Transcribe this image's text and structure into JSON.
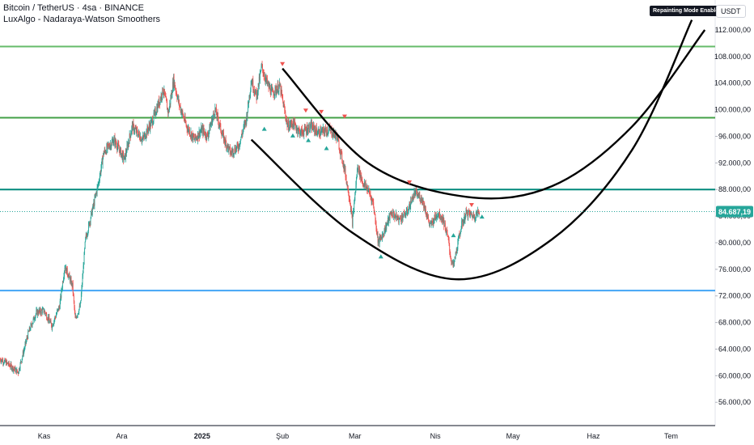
{
  "header": {
    "symbol_line": "Bitcoin / TetherUS · 4sa · BINANCE",
    "indicator_line": "LuxAlgo - Nadaraya-Watson Smoothers"
  },
  "badge": "Repainting Mode Enabled",
  "currency": "USDT",
  "colors": {
    "candle_up": "#26a69a",
    "candle_down": "#ef5350",
    "level_light_green": "#66bb6a",
    "level_green": "#43a047",
    "level_teal": "#00897b",
    "level_blue": "#42a5f5",
    "curve": "#000000",
    "price_label": "#26a69a"
  },
  "chart_data": {
    "type": "candlestick",
    "title": "Bitcoin / TetherUS · 4sa · BINANCE",
    "y_axis": {
      "ticks": [
        56000,
        60000,
        64000,
        68000,
        72000,
        76000,
        80000,
        84000,
        88000,
        92000,
        96000,
        100000,
        104000,
        108000,
        112000
      ],
      "tick_labels": [
        "56.000,00",
        "60.000,00",
        "64.000,00",
        "68.000,00",
        "72.000,00",
        "76.000,00",
        "80.000,00",
        "84.000,00",
        "88.000,00",
        "92.000,00",
        "96.000,00",
        "100.000,00",
        "104.000,00",
        "108.000,00",
        "112.000,00"
      ],
      "range": [
        52500,
        116500
      ]
    },
    "x_axis": {
      "tick_labels": [
        "Kas",
        "Ara",
        "2025",
        "Şub",
        "Mar",
        "Nis",
        "May",
        "Haz",
        "Tem"
      ],
      "tick_dates": [
        "2024-11-01",
        "2024-12-01",
        "2025-01-01",
        "2025-02-01",
        "2025-03-01",
        "2025-04-01",
        "2025-05-01",
        "2025-06-01",
        "2025-07-01"
      ],
      "range": [
        "2024-10-15",
        "2025-07-18"
      ]
    },
    "last_price": {
      "value": 84687.19,
      "label": "84.687,19"
    },
    "price_path": [
      [
        "2024-10-15",
        62500
      ],
      [
        "2024-10-18",
        61800
      ],
      [
        "2024-10-22",
        60500
      ],
      [
        "2024-10-26",
        66500
      ],
      [
        "2024-10-29",
        69500
      ],
      [
        "2024-11-01",
        69800
      ],
      [
        "2024-11-04",
        67500
      ],
      [
        "2024-11-07",
        70500
      ],
      [
        "2024-11-09",
        76500
      ],
      [
        "2024-11-12",
        73500
      ],
      [
        "2024-11-13",
        68500
      ],
      [
        "2024-11-15",
        70500
      ],
      [
        "2024-11-17",
        80500
      ],
      [
        "2024-11-20",
        85500
      ],
      [
        "2024-11-22",
        89000
      ],
      [
        "2024-11-24",
        93500
      ],
      [
        "2024-11-28",
        95500
      ],
      [
        "2024-12-02",
        92500
      ],
      [
        "2024-12-05",
        97500
      ],
      [
        "2024-12-09",
        95500
      ],
      [
        "2024-12-13",
        98500
      ],
      [
        "2024-12-17",
        103000
      ],
      [
        "2024-12-19",
        99500
      ],
      [
        "2024-12-21",
        104500
      ],
      [
        "2024-12-23",
        101000
      ],
      [
        "2024-12-26",
        97500
      ],
      [
        "2024-12-29",
        95500
      ],
      [
        "2025-01-01",
        97000
      ],
      [
        "2025-01-03",
        96000
      ],
      [
        "2025-01-06",
        100000
      ],
      [
        "2025-01-09",
        96000
      ],
      [
        "2025-01-12",
        93500
      ],
      [
        "2025-01-15",
        94500
      ],
      [
        "2025-01-18",
        98500
      ],
      [
        "2025-01-20",
        104500
      ],
      [
        "2025-01-22",
        102000
      ],
      [
        "2025-01-24",
        106500
      ],
      [
        "2025-01-26",
        104000
      ],
      [
        "2025-01-28",
        102500
      ],
      [
        "2025-01-31",
        103500
      ],
      [
        "2025-02-03",
        97500
      ],
      [
        "2025-02-05",
        98000
      ],
      [
        "2025-02-08",
        96500
      ],
      [
        "2025-02-12",
        97500
      ],
      [
        "2025-02-15",
        96500
      ],
      [
        "2025-02-19",
        97000
      ],
      [
        "2025-02-22",
        96000
      ],
      [
        "2025-02-25",
        91000
      ],
      [
        "2025-02-27",
        86500
      ],
      [
        "2025-02-28",
        83000
      ],
      [
        "2025-03-02",
        91500
      ],
      [
        "2025-03-04",
        89000
      ],
      [
        "2025-03-06",
        88000
      ],
      [
        "2025-03-08",
        86000
      ],
      [
        "2025-03-10",
        80000
      ],
      [
        "2025-03-12",
        81500
      ],
      [
        "2025-03-15",
        84500
      ],
      [
        "2025-03-18",
        83500
      ],
      [
        "2025-03-21",
        84500
      ],
      [
        "2025-03-24",
        87500
      ],
      [
        "2025-03-27",
        86500
      ],
      [
        "2025-03-30",
        82500
      ],
      [
        "2025-04-02",
        84500
      ],
      [
        "2025-04-04",
        83500
      ],
      [
        "2025-04-06",
        80500
      ],
      [
        "2025-04-07",
        77500
      ],
      [
        "2025-04-08",
        76500
      ],
      [
        "2025-04-09",
        78500
      ],
      [
        "2025-04-11",
        82500
      ],
      [
        "2025-04-13",
        84500
      ],
      [
        "2025-04-16",
        84000
      ],
      [
        "2025-04-18",
        84700
      ]
    ],
    "horizontal_levels": [
      {
        "value": 109500,
        "color": "#66bb6a"
      },
      {
        "value": 98800,
        "color": "#43a047"
      },
      {
        "value": 88000,
        "color": "#00897b"
      },
      {
        "value": 72800,
        "color": "#42a5f5"
      }
    ],
    "smoother_curves": [
      {
        "points": [
          [
            "2025-01-20",
            95500
          ],
          [
            "2025-02-28",
            81500
          ],
          [
            "2025-04-09",
            74500
          ],
          [
            "2025-05-16",
            80500
          ],
          [
            "2025-06-16",
            94000
          ],
          [
            "2025-07-09",
            113500
          ]
        ]
      },
      {
        "points": [
          [
            "2025-02-01",
            106200
          ],
          [
            "2025-03-06",
            92000
          ],
          [
            "2025-04-13",
            86900
          ],
          [
            "2025-05-16",
            88500
          ],
          [
            "2025-06-16",
            97500
          ],
          [
            "2025-07-14",
            112000
          ]
        ]
      }
    ],
    "signals_down": [
      [
        "2025-02-01",
        106800
      ],
      [
        "2025-02-10",
        99800
      ],
      [
        "2025-02-16",
        99600
      ],
      [
        "2025-02-25",
        98900
      ],
      [
        "2025-03-22",
        89000
      ],
      [
        "2025-04-15",
        85600
      ]
    ],
    "signals_up": [
      [
        "2025-01-25",
        97200
      ],
      [
        "2025-02-05",
        96200
      ],
      [
        "2025-02-11",
        95500
      ],
      [
        "2025-02-18",
        94300
      ],
      [
        "2025-03-11",
        78000
      ],
      [
        "2025-04-08",
        81200
      ],
      [
        "2025-04-19",
        84000
      ]
    ],
    "grid": false,
    "legend": "none"
  }
}
